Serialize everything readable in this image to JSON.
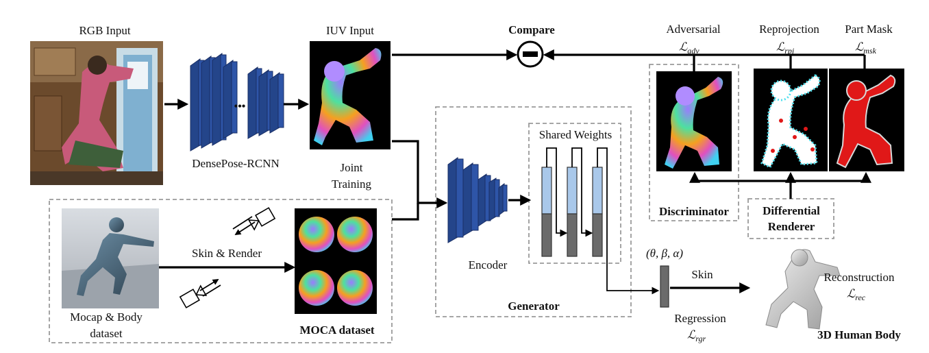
{
  "labels": {
    "rgb_input": "RGB Input",
    "iuv_input": "IUV Input",
    "compare": "Compare",
    "adversarial": "Adversarial",
    "reprojection": "Reprojection",
    "part_mask": "Part Mask",
    "densepose": "DensePose-RCNN",
    "joint_training_1": "Joint",
    "joint_training_2": "Training",
    "shared_weights": "Shared Weights",
    "discriminator": "Discriminator",
    "differential_1": "Differential",
    "differential_2": "Renderer",
    "skin_render": "Skin & Render",
    "mocap_1": "Mocap & Body",
    "mocap_2": "dataset",
    "moca_dataset": "MOCA dataset",
    "encoder": "Encoder",
    "generator": "Generator",
    "params": "(θ, β, α)",
    "skin": "Skin",
    "regression": "Regression",
    "reconstruction": "Reconstruction",
    "human_body": "3D Human Body",
    "dots": "•••"
  },
  "losses": {
    "adv": {
      "symbol": "ℒ",
      "sub": "adv"
    },
    "rpj": {
      "symbol": "ℒ",
      "sub": "rpj"
    },
    "msk": {
      "symbol": "ℒ",
      "sub": "msk"
    },
    "rec": {
      "symbol": "ℒ",
      "sub": "rec"
    },
    "rgr": {
      "symbol": "ℒ",
      "sub": "rgr"
    }
  },
  "colors": {
    "network_blue": "#2e55a8",
    "light_blue": "#a9c8ea",
    "dark_gray": "#6b6b6b",
    "panel_gray": "#f0f0f0",
    "dash_gray": "#9a9a9a",
    "mask_red": "#e01818",
    "cyan": "#4fe0ee"
  },
  "icons": [
    "camera-icon",
    "minus-circle-icon"
  ]
}
